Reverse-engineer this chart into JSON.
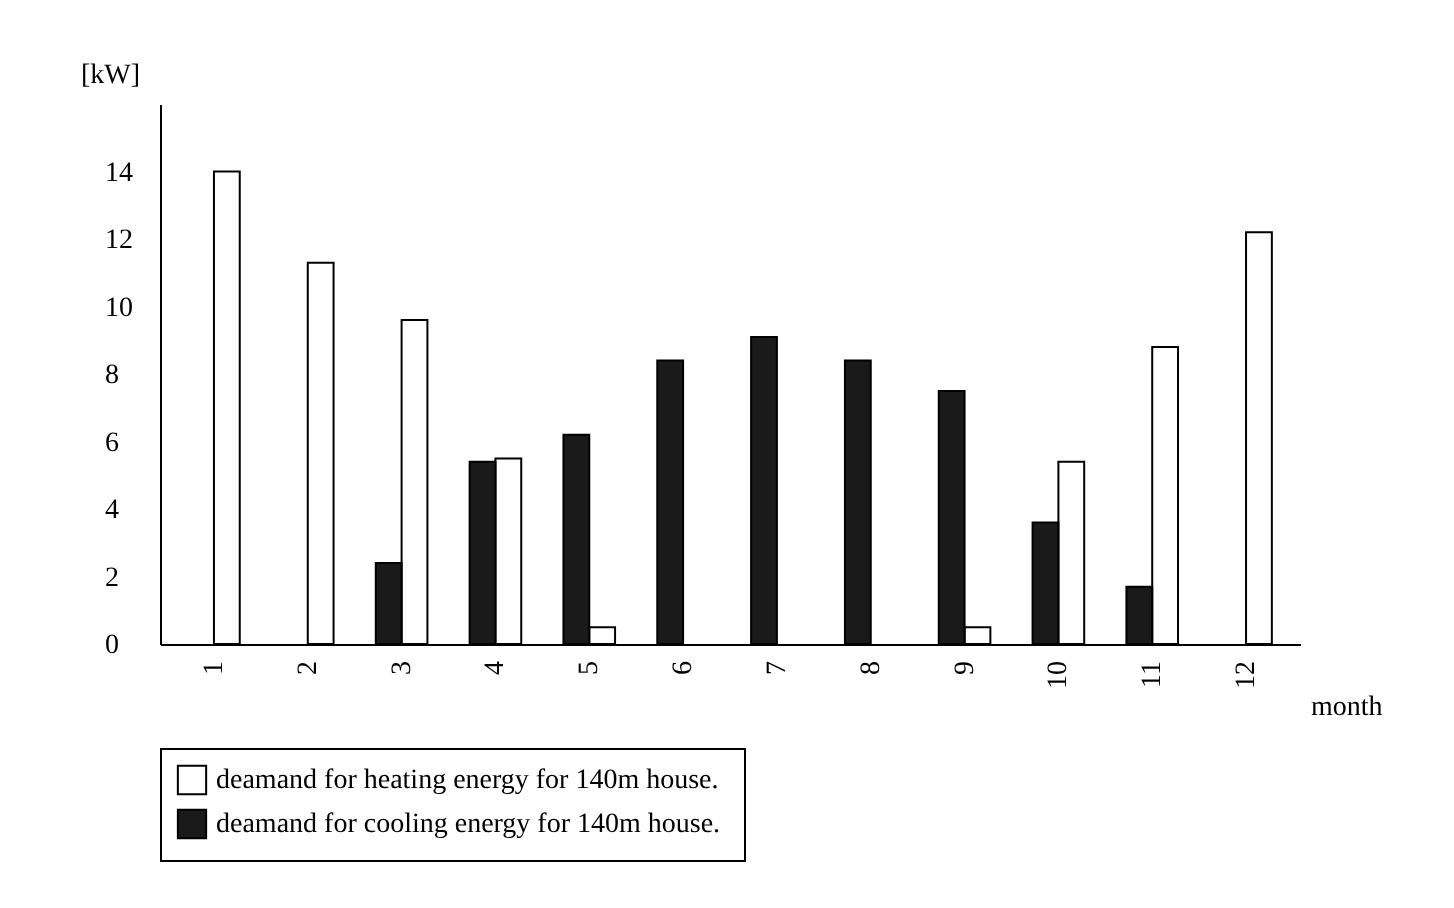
{
  "chart_data": {
    "type": "bar",
    "xlabel": "month",
    "ylabel": "[kW]",
    "categories": [
      "1",
      "2",
      "3",
      "4",
      "5",
      "6",
      "7",
      "8",
      "9",
      "10",
      "11",
      "12"
    ],
    "series": [
      {
        "name": "deamand for heating energy for 140m  house.",
        "color": "#ffffff",
        "values": [
          14,
          11.3,
          9.6,
          5.5,
          0.5,
          null,
          null,
          null,
          0.5,
          5.4,
          8.8,
          12.2
        ]
      },
      {
        "name": "deamand for cooling energy for 140m  house.",
        "color": "#1a1a1a",
        "values": [
          null,
          null,
          2.4,
          5.4,
          6.2,
          8.4,
          9.1,
          8.4,
          7.5,
          3.6,
          1.7,
          null
        ]
      }
    ],
    "ylim": [
      0,
      16
    ],
    "yticks": [
      0,
      2,
      4,
      6,
      8,
      10,
      12,
      14
    ],
    "grid": false,
    "legend": "bottom"
  }
}
